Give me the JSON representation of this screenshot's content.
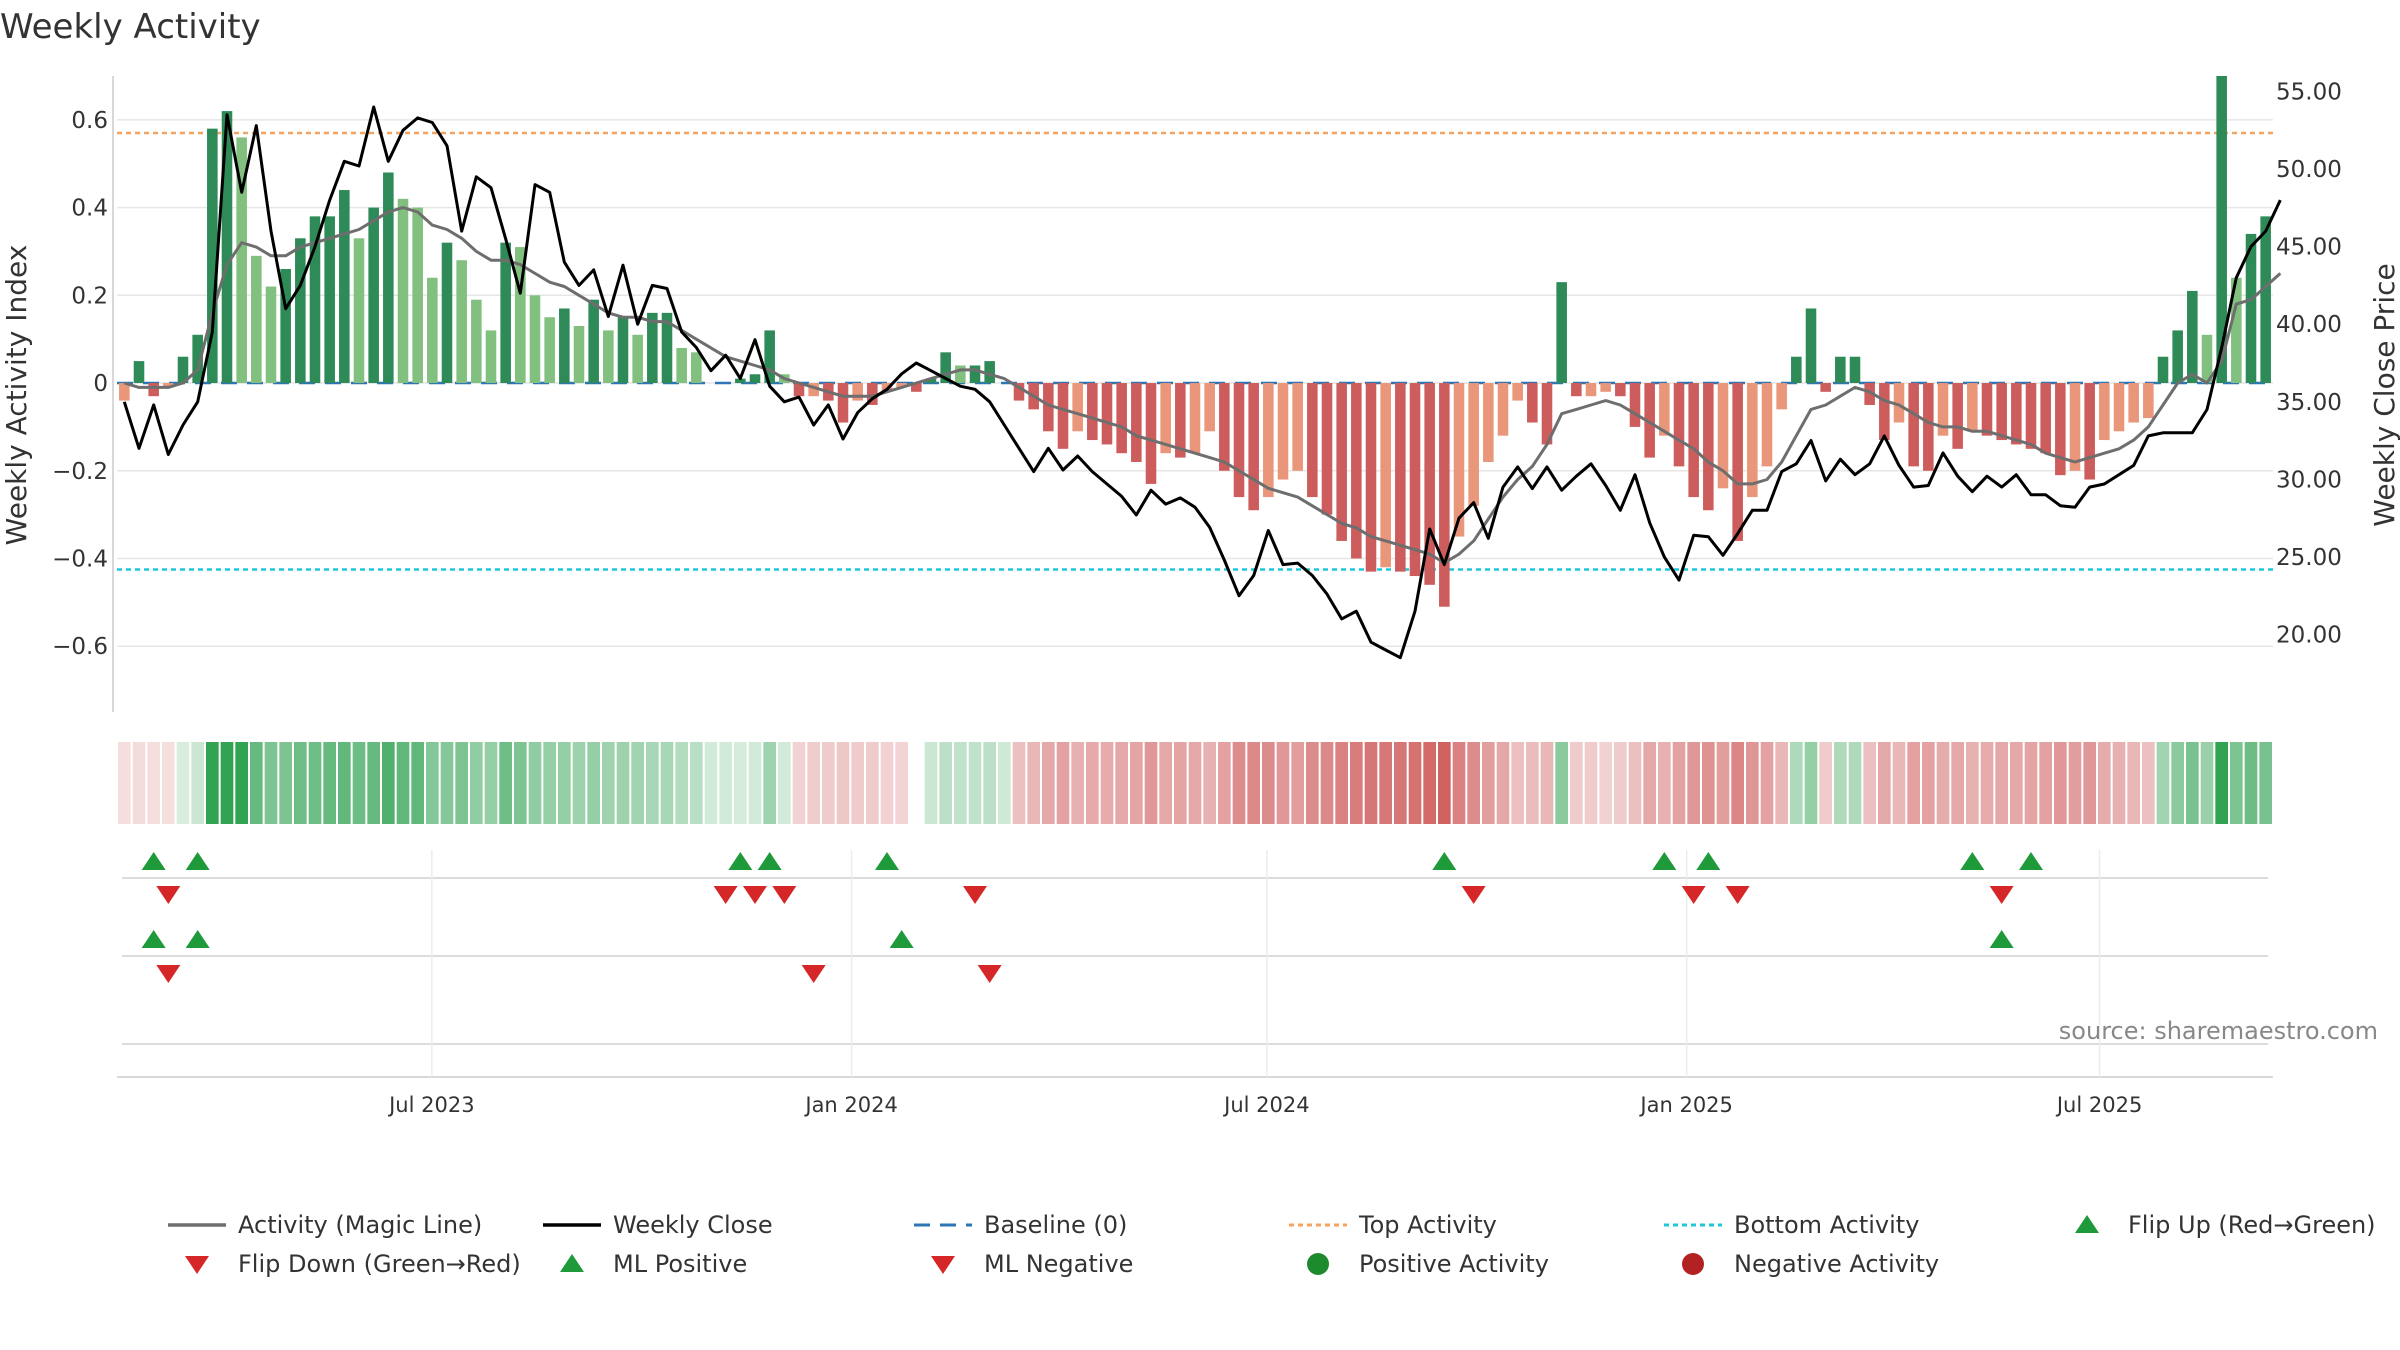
{
  "chart_data": {
    "type": "bar+line",
    "title": "Weekly Activity",
    "ylabel_left": "Weekly Activity Index",
    "ylabel_right": "Weekly Close Price",
    "source": "source: sharemaestro.com",
    "left_axis": {
      "ticks": [
        0.6,
        0.4,
        0.2,
        0,
        -0.2,
        -0.4,
        -0.6
      ],
      "tick_labels": [
        "0.6",
        "0.4",
        "0.2",
        "0",
        "−0.2",
        "−0.4",
        "−0.6"
      ],
      "range": [
        -0.75,
        0.7
      ]
    },
    "right_axis": {
      "ticks": [
        55,
        50,
        45,
        40,
        35,
        30,
        25,
        20
      ],
      "tick_labels": [
        "55.00",
        "50.00",
        "45.00",
        "40.00",
        "35.00",
        "30.00",
        "25.00",
        "20.00"
      ],
      "range": [
        15,
        56
      ]
    },
    "x_axis": {
      "start": "2023-02-13",
      "end": "2025-09-15",
      "ticks": [
        {
          "date": "2023-07-01",
          "label": "Jul 2023"
        },
        {
          "date": "2024-01-01",
          "label": "Jan 2024"
        },
        {
          "date": "2024-07-01",
          "label": "Jul 2024"
        },
        {
          "date": "2025-01-01",
          "label": "Jan 2025"
        },
        {
          "date": "2025-07-01",
          "label": "Jul 2025"
        }
      ]
    },
    "top_activity": 0.57,
    "bottom_activity": -0.425,
    "activity": [
      -0.04,
      0.05,
      -0.03,
      -0.01,
      0.06,
      0.11,
      0.58,
      0.62,
      0.56,
      0.29,
      0.22,
      0.26,
      0.33,
      0.38,
      0.38,
      0.44,
      0.33,
      0.4,
      0.48,
      0.42,
      0.4,
      0.24,
      0.32,
      0.28,
      0.19,
      0.12,
      0.32,
      0.31,
      0.2,
      0.15,
      0.17,
      0.13,
      0.19,
      0.12,
      0.15,
      0.11,
      0.16,
      0.16,
      0.08,
      0.07,
      0.0,
      0.0,
      0.01,
      0.02,
      0.12,
      0.02,
      -0.03,
      -0.03,
      -0.04,
      -0.09,
      -0.04,
      -0.05,
      -0.02,
      -0.01,
      -0.02,
      0.01,
      0.07,
      0.04,
      0.04,
      0.05,
      0.0,
      -0.04,
      -0.06,
      -0.11,
      -0.15,
      -0.11,
      -0.13,
      -0.14,
      -0.16,
      -0.18,
      -0.23,
      -0.16,
      -0.17,
      -0.16,
      -0.11,
      -0.2,
      -0.26,
      -0.29,
      -0.26,
      -0.22,
      -0.2,
      -0.26,
      -0.3,
      -0.36,
      -0.4,
      -0.43,
      -0.42,
      -0.43,
      -0.44,
      -0.46,
      -0.51,
      -0.35,
      -0.28,
      -0.18,
      -0.12,
      -0.04,
      -0.09,
      -0.14,
      0.23,
      -0.03,
      -0.03,
      -0.02,
      -0.03,
      -0.1,
      -0.17,
      -0.12,
      -0.19,
      -0.26,
      -0.29,
      -0.24,
      -0.36,
      -0.26,
      -0.19,
      -0.06,
      0.06,
      0.17,
      -0.02,
      0.06,
      0.06,
      -0.05,
      -0.13,
      -0.09,
      -0.19,
      -0.2,
      -0.12,
      -0.15,
      -0.11,
      -0.12,
      -0.13,
      -0.14,
      -0.15,
      -0.16,
      -0.21,
      -0.2,
      -0.22,
      -0.13,
      -0.11,
      -0.09,
      -0.08,
      0.06,
      0.12,
      0.21,
      0.11,
      0.7,
      0.24,
      0.34,
      0.38
    ],
    "magic_line": [
      0.0,
      -0.01,
      -0.01,
      -0.01,
      0.0,
      0.03,
      0.16,
      0.27,
      0.32,
      0.31,
      0.29,
      0.29,
      0.31,
      0.32,
      0.33,
      0.34,
      0.35,
      0.37,
      0.39,
      0.4,
      0.39,
      0.36,
      0.35,
      0.33,
      0.3,
      0.28,
      0.28,
      0.27,
      0.25,
      0.23,
      0.22,
      0.2,
      0.18,
      0.16,
      0.15,
      0.15,
      0.14,
      0.14,
      0.12,
      0.1,
      0.08,
      0.06,
      0.05,
      0.04,
      0.03,
      0.01,
      0.0,
      -0.01,
      -0.02,
      -0.03,
      -0.03,
      -0.03,
      -0.02,
      -0.01,
      0.0,
      0.01,
      0.02,
      0.03,
      0.03,
      0.02,
      0.01,
      -0.01,
      -0.03,
      -0.05,
      -0.06,
      -0.07,
      -0.08,
      -0.09,
      -0.1,
      -0.12,
      -0.13,
      -0.14,
      -0.15,
      -0.16,
      -0.17,
      -0.18,
      -0.2,
      -0.22,
      -0.24,
      -0.25,
      -0.26,
      -0.28,
      -0.3,
      -0.32,
      -0.33,
      -0.35,
      -0.36,
      -0.37,
      -0.38,
      -0.39,
      -0.41,
      -0.39,
      -0.36,
      -0.31,
      -0.26,
      -0.22,
      -0.19,
      -0.14,
      -0.07,
      -0.06,
      -0.05,
      -0.04,
      -0.05,
      -0.07,
      -0.09,
      -0.11,
      -0.13,
      -0.15,
      -0.18,
      -0.2,
      -0.23,
      -0.23,
      -0.22,
      -0.18,
      -0.12,
      -0.06,
      -0.05,
      -0.03,
      -0.01,
      -0.02,
      -0.04,
      -0.05,
      -0.07,
      -0.09,
      -0.1,
      -0.1,
      -0.11,
      -0.11,
      -0.12,
      -0.13,
      -0.14,
      -0.16,
      -0.17,
      -0.18,
      -0.17,
      -0.16,
      -0.15,
      -0.13,
      -0.1,
      -0.05,
      0.0,
      0.02,
      0.0,
      0.05,
      0.18,
      0.19,
      0.22,
      0.25
    ],
    "weekly_close": [
      35.0,
      32.0,
      34.8,
      31.6,
      33.5,
      35.0,
      39.5,
      53.5,
      48.5,
      52.8,
      46.0,
      41.0,
      42.5,
      45.0,
      48.0,
      50.5,
      50.2,
      54.0,
      50.5,
      52.5,
      53.3,
      53.0,
      51.5,
      46.0,
      49.5,
      48.8,
      45.5,
      42.0,
      49.0,
      48.5,
      44.0,
      42.5,
      43.5,
      40.5,
      43.8,
      40.0,
      42.5,
      42.3,
      39.5,
      38.5,
      37.0,
      38.0,
      36.5,
      39.0,
      36.0,
      35.0,
      35.3,
      33.5,
      34.8,
      32.6,
      34.3,
      35.2,
      35.8,
      36.8,
      37.5,
      37.0,
      36.5,
      36.0,
      35.8,
      35.0,
      33.5,
      32.0,
      30.5,
      32.0,
      30.6,
      31.5,
      30.5,
      29.7,
      28.9,
      27.7,
      29.3,
      28.4,
      28.8,
      28.2,
      26.9,
      24.8,
      22.5,
      23.8,
      26.7,
      24.5,
      24.6,
      23.8,
      22.6,
      21.0,
      21.5,
      19.5,
      19.0,
      18.5,
      21.5,
      26.8,
      24.5,
      27.5,
      28.5,
      26.2,
      29.5,
      30.8,
      29.4,
      30.8,
      29.3,
      30.2,
      31.0,
      29.6,
      28.0,
      30.3,
      27.2,
      25.0,
      23.5,
      26.4,
      26.3,
      25.1,
      26.5,
      28.0,
      28.0,
      30.5,
      31.0,
      32.5,
      29.9,
      31.3,
      30.3,
      31.0,
      32.8,
      30.9,
      29.5,
      29.6,
      31.7,
      30.2,
      29.2,
      30.2,
      29.5,
      30.3,
      29.0,
      29.0,
      28.3,
      28.2,
      29.5,
      29.7,
      30.3,
      30.9,
      32.8,
      33.0,
      33.0,
      33.0,
      34.5,
      38.5,
      43.0,
      45.0,
      46.0,
      48.0
    ],
    "heat_levels": [
      -0.03,
      -0.05,
      -0.04,
      -0.04,
      0.05,
      0.12,
      0.98,
      0.98,
      0.98,
      0.68,
      0.55,
      0.55,
      0.63,
      0.63,
      0.68,
      0.71,
      0.63,
      0.68,
      0.8,
      0.72,
      0.72,
      0.52,
      0.52,
      0.55,
      0.45,
      0.42,
      0.63,
      0.55,
      0.45,
      0.42,
      0.42,
      0.38,
      0.42,
      0.36,
      0.38,
      0.35,
      0.32,
      0.32,
      0.25,
      0.22,
      0.08,
      0.08,
      0.06,
      0.08,
      0.36,
      0.08,
      -0.12,
      -0.14,
      -0.15,
      -0.18,
      -0.15,
      -0.15,
      -0.12,
      -0.1,
      null,
      0.12,
      0.2,
      0.18,
      0.18,
      0.2,
      0.1,
      -0.22,
      -0.28,
      -0.38,
      -0.42,
      -0.32,
      -0.36,
      -0.35,
      -0.38,
      -0.4,
      -0.48,
      -0.38,
      -0.4,
      -0.38,
      -0.32,
      -0.42,
      -0.55,
      -0.58,
      -0.55,
      -0.48,
      -0.45,
      -0.55,
      -0.58,
      -0.62,
      -0.66,
      -0.7,
      -0.68,
      -0.7,
      -0.72,
      -0.76,
      -0.82,
      -0.62,
      -0.55,
      -0.45,
      -0.38,
      -0.22,
      -0.25,
      -0.28,
      0.48,
      -0.15,
      -0.15,
      -0.12,
      -0.15,
      -0.22,
      -0.38,
      -0.32,
      -0.42,
      -0.48,
      -0.52,
      -0.45,
      -0.6,
      -0.5,
      -0.42,
      -0.28,
      0.28,
      0.42,
      -0.15,
      0.28,
      0.28,
      -0.22,
      -0.38,
      -0.28,
      -0.42,
      -0.42,
      -0.35,
      -0.38,
      -0.32,
      -0.35,
      -0.38,
      -0.38,
      -0.4,
      -0.42,
      -0.48,
      -0.45,
      -0.48,
      -0.35,
      -0.32,
      -0.28,
      -0.22,
      0.35,
      0.48,
      0.58,
      0.4,
      0.98,
      0.55,
      0.65,
      0.58
    ],
    "flip_up_markers": [
      2,
      5,
      42,
      44,
      52,
      90,
      105,
      108,
      126,
      130
    ],
    "flip_down_markers": [
      3,
      41,
      43,
      45,
      58,
      92,
      107,
      110,
      128
    ],
    "ml_positive_markers": [
      2,
      5,
      53,
      128
    ],
    "ml_negative_markers": [
      3,
      47,
      59
    ],
    "legend": [
      {
        "label": "Activity (Magic Line)",
        "symbol": "line",
        "color": "#6e6e6e"
      },
      {
        "label": "Weekly Close",
        "symbol": "line",
        "color": "#000000"
      },
      {
        "label": "Baseline (0)",
        "symbol": "dashed",
        "color": "#2e75b6"
      },
      {
        "label": "Top Activity",
        "symbol": "dotted",
        "color": "#f4a460"
      },
      {
        "label": "Bottom Activity",
        "symbol": "dotted",
        "color": "#1ec8d8"
      },
      {
        "label": "Flip Up (Red→Green)",
        "symbol": "triangle-up",
        "color": "#1e9a3a"
      },
      {
        "label": "Flip Down (Green→Red)",
        "symbol": "triangle-down",
        "color": "#d62728"
      },
      {
        "label": "ML Positive",
        "symbol": "triangle-up",
        "color": "#1e9a3a"
      },
      {
        "label": "ML Negative",
        "symbol": "triangle-down",
        "color": "#d62728"
      },
      {
        "label": "Positive Activity",
        "symbol": "circle",
        "color": "#1e8a2e"
      },
      {
        "label": "Negative Activity",
        "symbol": "circle",
        "color": "#b22222"
      }
    ],
    "colors": {
      "bar_dark_green": "#2e8b57",
      "bar_light_green": "#82c07f",
      "bar_dark_red": "#cd5c5c",
      "bar_light_red": "#e9967a",
      "grid": "#e6e6e6"
    }
  }
}
